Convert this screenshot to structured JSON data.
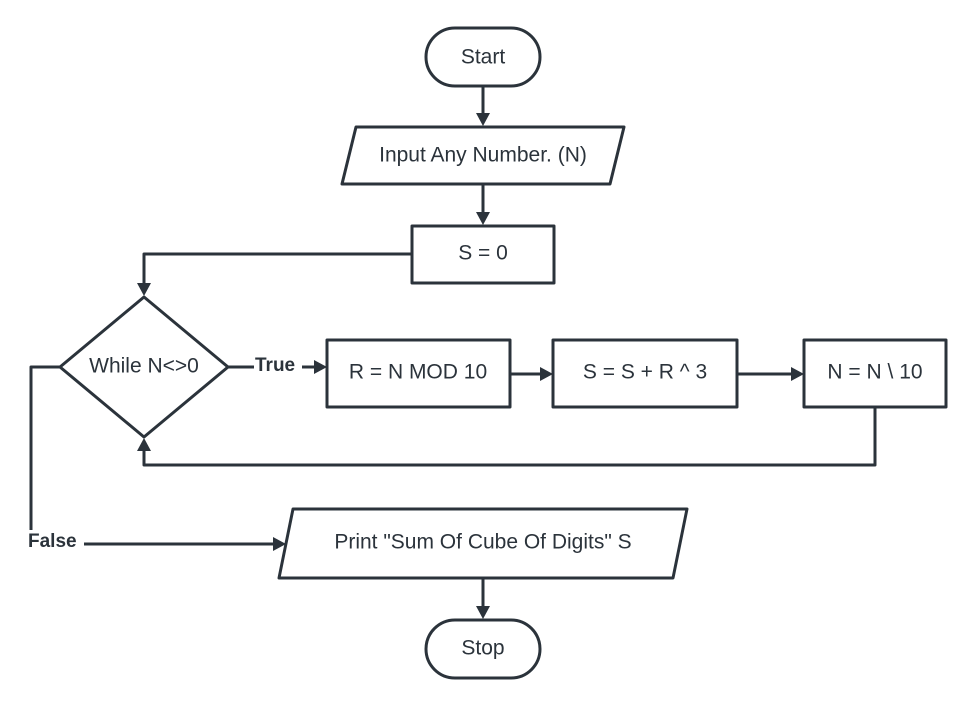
{
  "nodes": {
    "start": "Start",
    "input": "Input Any Number. (N)",
    "init_sum": "S = 0",
    "while": "While N<>0",
    "mod": "R = N MOD 10",
    "cube_sum": "S = S + R ^ 3",
    "divide": "N = N \\ 10",
    "print": "Print \"Sum Of Cube Of Digits\" S",
    "stop": "Stop"
  },
  "edges": {
    "true_label": "True",
    "false_label": "False"
  },
  "colors": {
    "stroke": "#2b333b",
    "fill": "#ffffff",
    "text": "#2b333b"
  }
}
